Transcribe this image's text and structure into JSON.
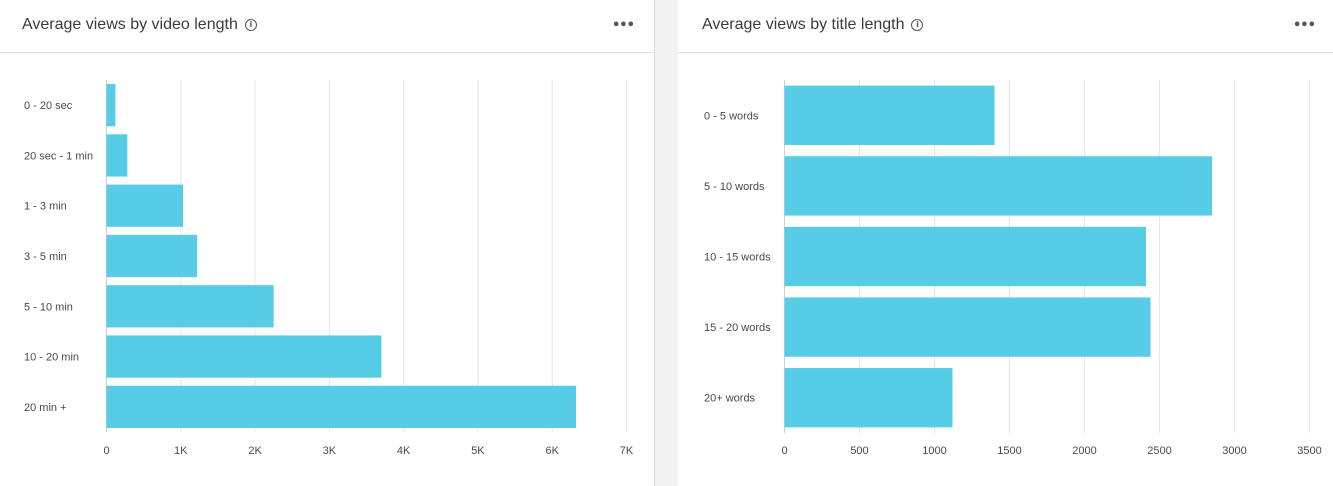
{
  "colors": {
    "bar": "#56cce6",
    "grid": "#e6e6e6",
    "axis": "#cfcfcf"
  },
  "panels": {
    "left": {
      "title": "Average views by video length",
      "info_icon": "info-icon",
      "menu_icon": "more-horizontal-icon"
    },
    "right": {
      "title": "Average views by title length",
      "info_icon": "info-icon",
      "menu_icon": "more-horizontal-icon"
    }
  },
  "chart_data": [
    {
      "type": "bar",
      "orientation": "horizontal",
      "title": "Average views by video length",
      "categories": [
        "0 - 20 sec",
        "20 sec - 1 min",
        "1 - 3 min",
        "3 - 5 min",
        "5 - 10 min",
        "10 - 20 min",
        "20 min +"
      ],
      "values": [
        120,
        280,
        1030,
        1220,
        2250,
        3700,
        6320
      ],
      "xlim": [
        0,
        7000
      ],
      "xticks": [
        0,
        1000,
        2000,
        3000,
        4000,
        5000,
        6000,
        7000
      ],
      "xtick_labels": [
        "0",
        "1K",
        "2K",
        "3K",
        "4K",
        "5K",
        "6K",
        "7K"
      ],
      "grid": true
    },
    {
      "type": "bar",
      "orientation": "horizontal",
      "title": "Average views by title length",
      "categories": [
        "0 - 5 words",
        "5 - 10 words",
        "10 - 15 words",
        "15 - 20 words",
        "20+ words"
      ],
      "values": [
        1400,
        2850,
        2410,
        2440,
        1120
      ],
      "xlim": [
        0,
        3500
      ],
      "xticks": [
        0,
        500,
        1000,
        1500,
        2000,
        2500,
        3000,
        3500
      ],
      "xtick_labels": [
        "0",
        "500",
        "1000",
        "1500",
        "2000",
        "2500",
        "3000",
        "3500"
      ],
      "grid": true
    }
  ]
}
